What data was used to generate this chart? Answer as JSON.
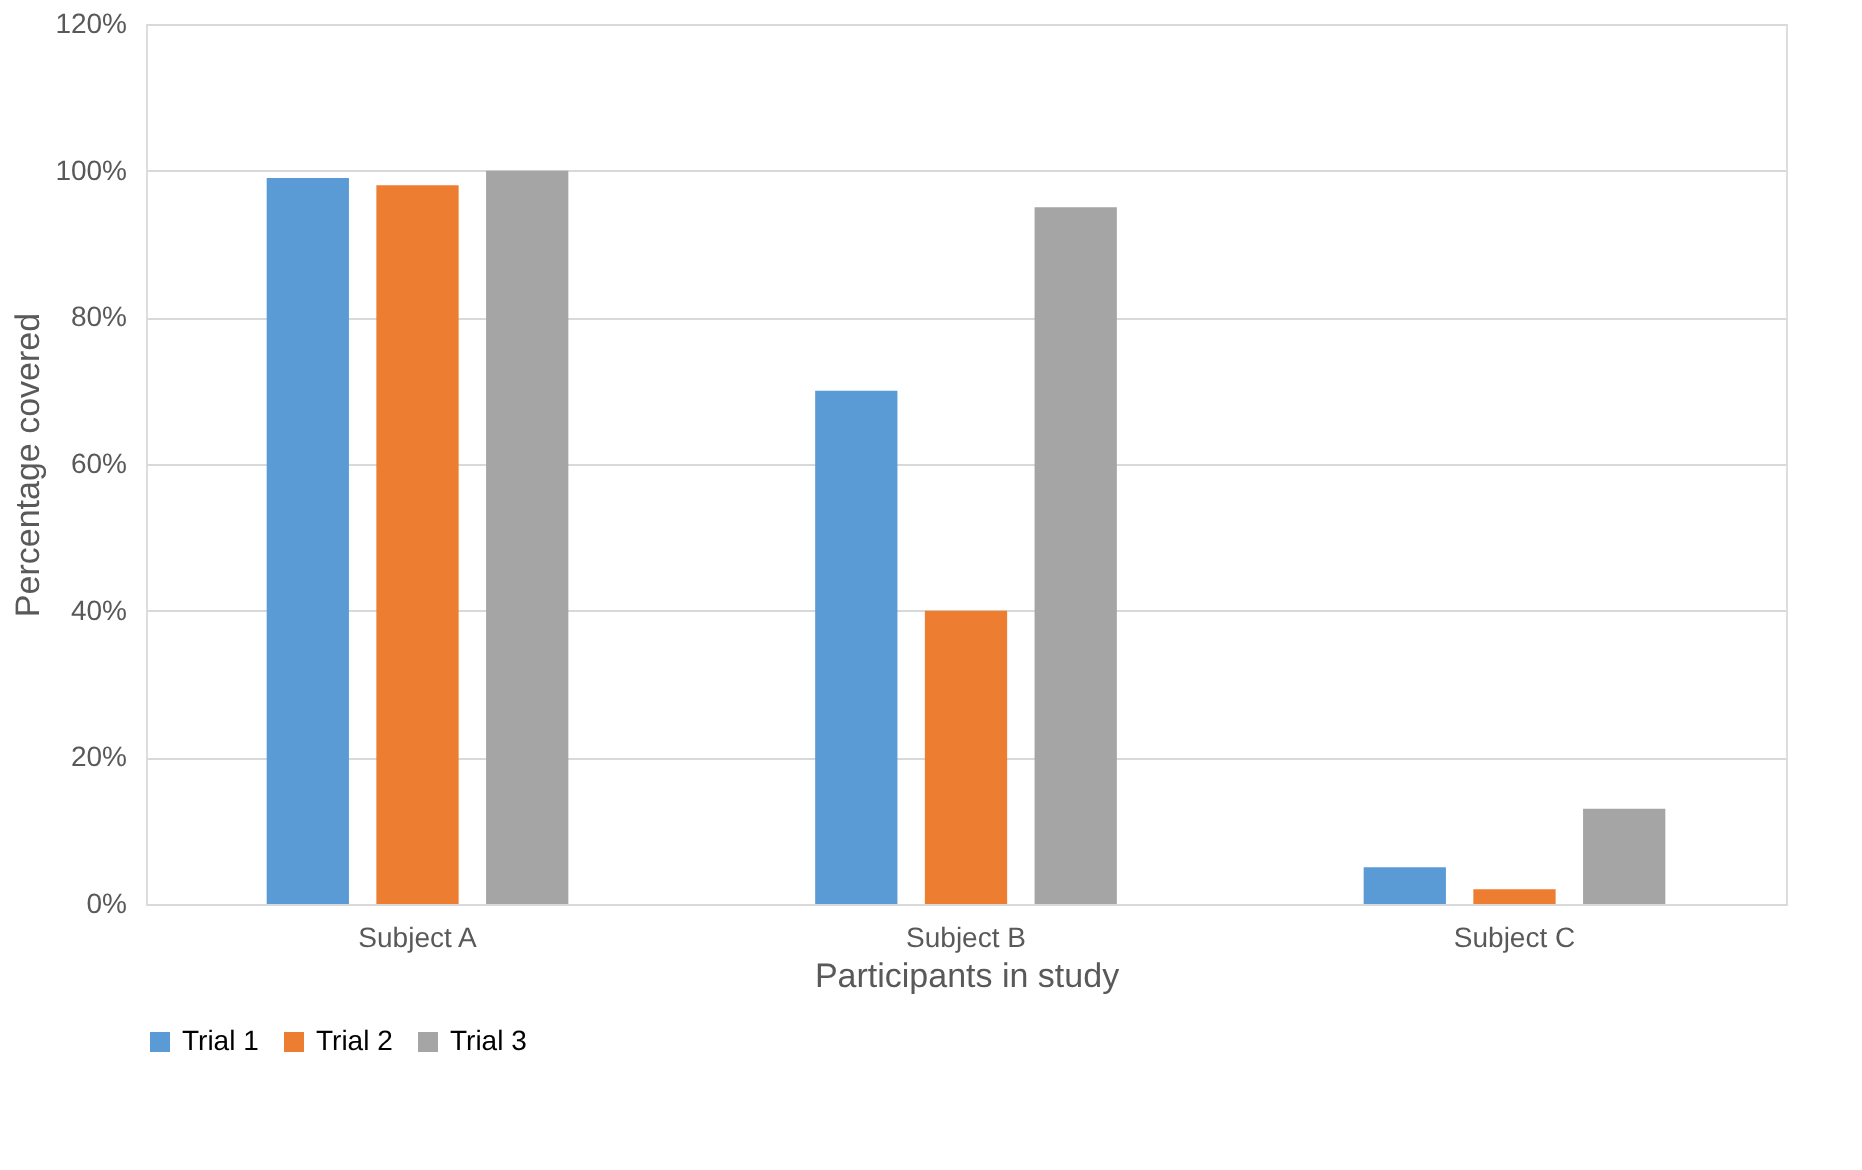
{
  "chart_data": {
    "type": "bar",
    "categories": [
      "Subject A",
      "Subject B",
      "Subject C"
    ],
    "series": [
      {
        "name": "Trial 1",
        "color": "#5b9bd5",
        "values": [
          99,
          70,
          5
        ]
      },
      {
        "name": "Trial 2",
        "color": "#ed7d31",
        "values": [
          98,
          40,
          2
        ]
      },
      {
        "name": "Trial 3",
        "color": "#a5a5a5",
        "values": [
          100,
          95,
          13
        ]
      }
    ],
    "xlabel": "Participants in study",
    "ylabel": "Percentage covered",
    "ylim": [
      0,
      120
    ],
    "yticks": [
      {
        "value": 0,
        "label": "0%"
      },
      {
        "value": 20,
        "label": "20%"
      },
      {
        "value": 40,
        "label": "40%"
      },
      {
        "value": 60,
        "label": "60%"
      },
      {
        "value": 80,
        "label": "80%"
      },
      {
        "value": 100,
        "label": "100%"
      },
      {
        "value": 120,
        "label": "120%"
      }
    ],
    "grid": "y",
    "legend": "bottom"
  }
}
